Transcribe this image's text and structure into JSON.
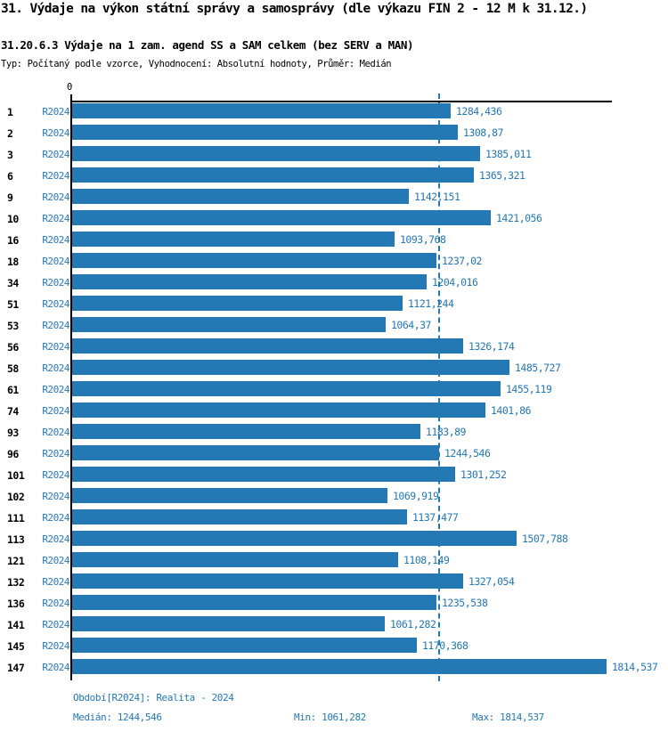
{
  "title": "31. Výdaje na výkon státní správy a samosprávy (dle výkazu FIN 2 - 12 M k 31.12.)",
  "subtitle": "31.20.6.3 Výdaje na 1 zam. agend SS a SAM celkem (bez SERV a MAN)",
  "meta": "Typ: Počítaný podle vzorce, Vyhodnocení: Absolutní hodnoty, Průměr: Medián",
  "colors": {
    "bar": "#2478b4",
    "accent_text": "#2478b4",
    "axis": "#000000"
  },
  "chart_data": {
    "type": "bar",
    "orientation": "horizontal",
    "title": "31.20.6.3 Výdaje na 1 zam. agend SS a SAM celkem (bez SERV a MAN)",
    "xlabel": "",
    "ylabel": "",
    "xlim": [
      0,
      1814.537
    ],
    "x_origin_label": "0",
    "grid": false,
    "median_reference_line": 1244.546,
    "series_label": "R2024",
    "categories": [
      "1",
      "2",
      "3",
      "6",
      "9",
      "10",
      "16",
      "18",
      "34",
      "51",
      "53",
      "56",
      "58",
      "61",
      "74",
      "93",
      "96",
      "101",
      "102",
      "111",
      "113",
      "121",
      "132",
      "136",
      "141",
      "145",
      "147"
    ],
    "rows": [
      {
        "category": "1",
        "series": "R2024",
        "value": 1284.436,
        "value_label": "1284,436"
      },
      {
        "category": "2",
        "series": "R2024",
        "value": 1308.87,
        "value_label": "1308,87"
      },
      {
        "category": "3",
        "series": "R2024",
        "value": 1385.011,
        "value_label": "1385,011"
      },
      {
        "category": "6",
        "series": "R2024",
        "value": 1365.321,
        "value_label": "1365,321"
      },
      {
        "category": "9",
        "series": "R2024",
        "value": 1142.151,
        "value_label": "1142,151"
      },
      {
        "category": "10",
        "series": "R2024",
        "value": 1421.056,
        "value_label": "1421,056"
      },
      {
        "category": "16",
        "series": "R2024",
        "value": 1093.768,
        "value_label": "1093,768"
      },
      {
        "category": "18",
        "series": "R2024",
        "value": 1237.02,
        "value_label": "1237,02"
      },
      {
        "category": "34",
        "series": "R2024",
        "value": 1204.016,
        "value_label": "1204,016"
      },
      {
        "category": "51",
        "series": "R2024",
        "value": 1121.244,
        "value_label": "1121,244"
      },
      {
        "category": "53",
        "series": "R2024",
        "value": 1064.37,
        "value_label": "1064,37"
      },
      {
        "category": "56",
        "series": "R2024",
        "value": 1326.174,
        "value_label": "1326,174"
      },
      {
        "category": "58",
        "series": "R2024",
        "value": 1485.727,
        "value_label": "1485,727"
      },
      {
        "category": "61",
        "series": "R2024",
        "value": 1455.119,
        "value_label": "1455,119"
      },
      {
        "category": "74",
        "series": "R2024",
        "value": 1401.86,
        "value_label": "1401,86"
      },
      {
        "category": "93",
        "series": "R2024",
        "value": 1183.89,
        "value_label": "1183,89"
      },
      {
        "category": "96",
        "series": "R2024",
        "value": 1244.546,
        "value_label": "1244,546"
      },
      {
        "category": "101",
        "series": "R2024",
        "value": 1301.252,
        "value_label": "1301,252"
      },
      {
        "category": "102",
        "series": "R2024",
        "value": 1069.919,
        "value_label": "1069,919"
      },
      {
        "category": "111",
        "series": "R2024",
        "value": 1137.477,
        "value_label": "1137,477"
      },
      {
        "category": "113",
        "series": "R2024",
        "value": 1507.788,
        "value_label": "1507,788"
      },
      {
        "category": "121",
        "series": "R2024",
        "value": 1108.149,
        "value_label": "1108,149"
      },
      {
        "category": "132",
        "series": "R2024",
        "value": 1327.054,
        "value_label": "1327,054"
      },
      {
        "category": "136",
        "series": "R2024",
        "value": 1235.538,
        "value_label": "1235,538"
      },
      {
        "category": "141",
        "series": "R2024",
        "value": 1061.282,
        "value_label": "1061,282"
      },
      {
        "category": "145",
        "series": "R2024",
        "value": 1170.368,
        "value_label": "1170,368"
      },
      {
        "category": "147",
        "series": "R2024",
        "value": 1814.537,
        "value_label": "1814,537"
      }
    ]
  },
  "footer": {
    "period": "Období[R2024]: Realita - 2024",
    "median": "Medián: 1244,546",
    "min": "Min: 1061,282",
    "max": "Max: 1814,537"
  }
}
